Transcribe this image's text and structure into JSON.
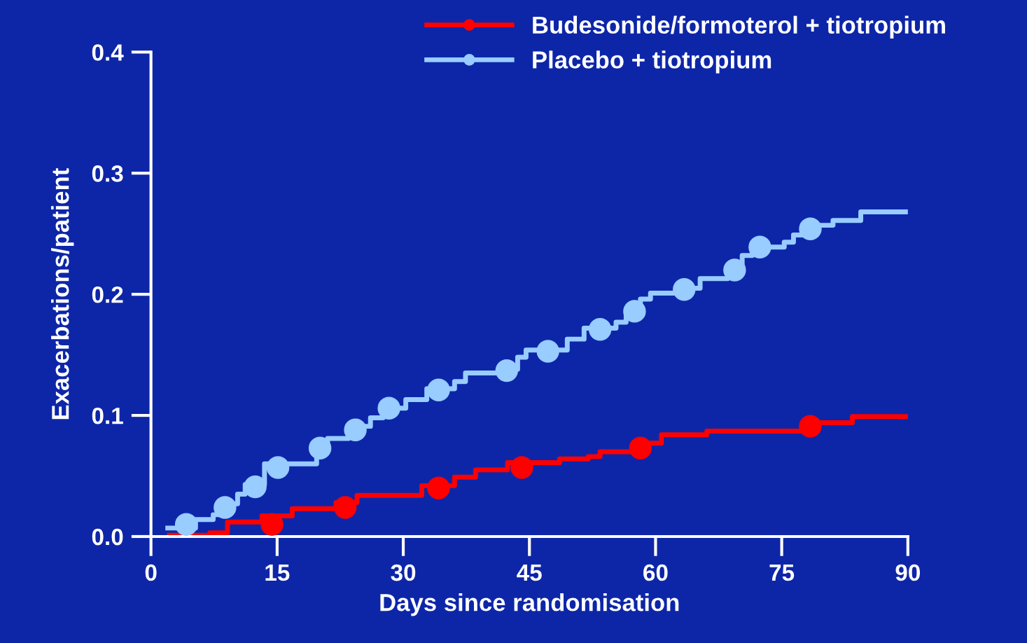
{
  "chart_data": {
    "type": "step",
    "xlabel": "Days since randomisation",
    "ylabel": "Exacerbations/patient",
    "xlim": [
      0,
      90
    ],
    "ylim": [
      0,
      0.4
    ],
    "xticks": [
      0,
      15,
      30,
      45,
      60,
      75,
      90
    ],
    "yticks": [
      {
        "value": 0,
        "label": "0.0"
      },
      0.1,
      0.2,
      0.3,
      0.4
    ],
    "grid": false,
    "legend": "top right",
    "line_style": "solid",
    "series": [
      {
        "name": "Budesonide/formoterol + tiotropium",
        "color": "#ff0000",
        "x": [
          2.2,
          7.0,
          9.1,
          13.2,
          16.8,
          22.0,
          24.5,
          32.2,
          36.1,
          38.6,
          42.4,
          48.6,
          52.0,
          53.4,
          57.4,
          60.7,
          66.1,
          78.6,
          83.4,
          90
        ],
        "values": [
          0.001,
          0.003,
          0.012,
          0.017,
          0.023,
          0.028,
          0.034,
          0.042,
          0.049,
          0.055,
          0.061,
          0.064,
          0.066,
          0.07,
          0.077,
          0.084,
          0.087,
          0.094,
          0.099,
          0.099
        ]
      },
      {
        "name": "Placebo + tiotropium",
        "color": "#99ccff",
        "x": [
          2.0,
          5.3,
          7.4,
          8.2,
          10.3,
          11.2,
          13.5,
          19.7,
          21.0,
          23.5,
          26.1,
          27.6,
          30.3,
          32.8,
          36.1,
          37.4,
          42.4,
          43.6,
          44.6,
          49.5,
          51.5,
          55.3,
          56.5,
          58.2,
          59.4,
          63.2,
          65.3,
          68.6,
          70.3,
          71.5,
          75.3,
          76.4,
          77.8,
          81.1,
          84.4,
          90
        ],
        "values": [
          0.007,
          0.014,
          0.018,
          0.027,
          0.035,
          0.043,
          0.06,
          0.073,
          0.081,
          0.091,
          0.098,
          0.106,
          0.113,
          0.122,
          0.128,
          0.135,
          0.138,
          0.148,
          0.154,
          0.163,
          0.172,
          0.177,
          0.187,
          0.196,
          0.201,
          0.205,
          0.213,
          0.221,
          0.232,
          0.239,
          0.243,
          0.249,
          0.257,
          0.261,
          0.268,
          0.268
        ]
      },
      {
        "color": "#ff0000",
        "type": "scatter",
        "marker": "circle",
        "x": [
          14.4,
          23.1,
          34.2,
          44.1,
          58.2,
          78.4
        ],
        "values": [
          0.01,
          0.024,
          0.04,
          0.057,
          0.073,
          0.091
        ]
      },
      {
        "color": "#99ccff",
        "type": "scatter",
        "marker": "circle",
        "x": [
          4.2,
          8.8,
          12.4,
          15.1,
          20.1,
          24.3,
          28.3,
          34.2,
          42.3,
          47.2,
          53.4,
          57.5,
          63.4,
          69.4,
          72.4,
          78.4
        ],
        "values": [
          0.01,
          0.024,
          0.041,
          0.057,
          0.073,
          0.088,
          0.106,
          0.121,
          0.137,
          0.153,
          0.171,
          0.186,
          0.204,
          0.22,
          0.239,
          0.254
        ]
      }
    ]
  }
}
